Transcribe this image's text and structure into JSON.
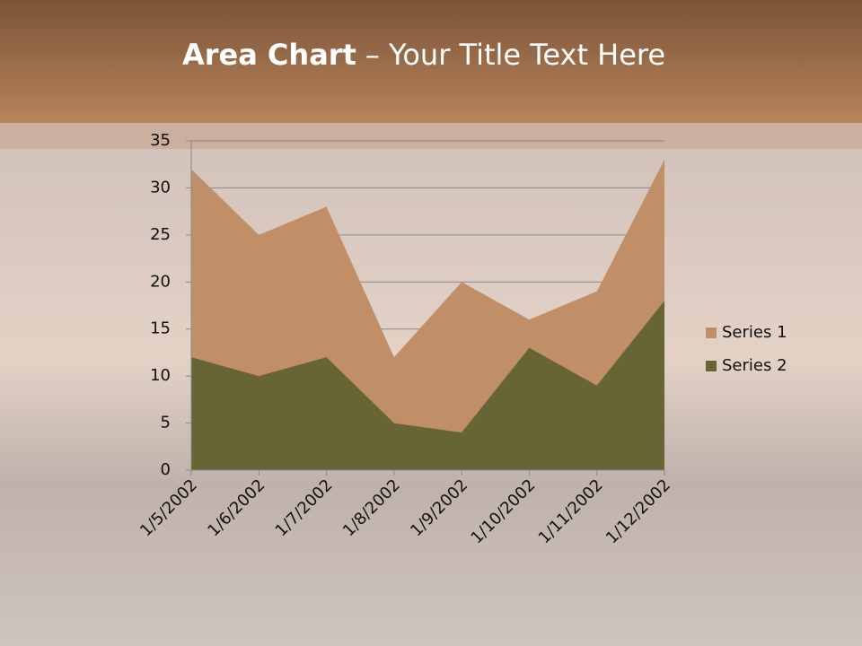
{
  "chart_data": {
    "type": "area",
    "title": "Area Chart",
    "title_suffix": "– Your Title Text Here",
    "categories": [
      "1/5/2002",
      "1/6/2002",
      "1/7/2002",
      "1/8/2002",
      "1/9/2002",
      "1/10/2002",
      "1/11/2002",
      "1/12/2002"
    ],
    "series": [
      {
        "name": "Series 1",
        "color": "#c08f68",
        "values": [
          32,
          25,
          28,
          12,
          20,
          16,
          19,
          33
        ]
      },
      {
        "name": "Series 2",
        "color": "#676535",
        "values": [
          12,
          10,
          12,
          5,
          4,
          13,
          9,
          18
        ]
      }
    ],
    "ylim": [
      0,
      35
    ],
    "yticks": [
      0,
      5,
      10,
      15,
      20,
      25,
      30,
      35
    ],
    "grid": true,
    "legend": "right"
  }
}
